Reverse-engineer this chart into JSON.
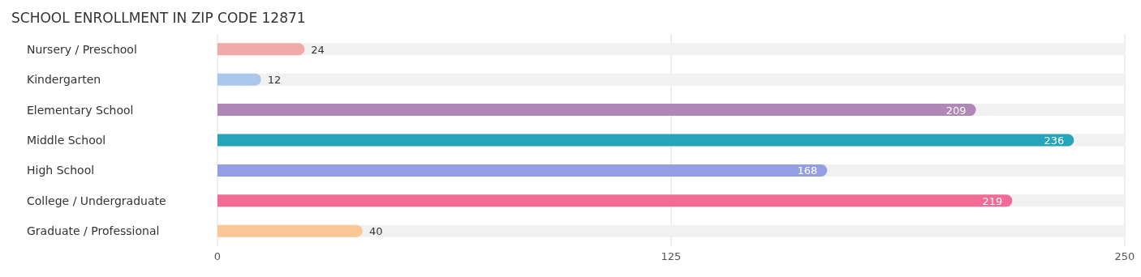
{
  "chart_data": {
    "type": "bar",
    "orientation": "horizontal",
    "title": "SCHOOL ENROLLMENT IN ZIP CODE 12871",
    "categories": [
      "Nursery / Preschool",
      "Kindergarten",
      "Elementary School",
      "Middle School",
      "High School",
      "College / Undergraduate",
      "Graduate / Professional"
    ],
    "values": [
      24,
      12,
      209,
      236,
      168,
      219,
      40
    ],
    "colors": [
      "#f0aaa8",
      "#a9c8ec",
      "#b088b8",
      "#27a5b8",
      "#939fe2",
      "#f26b96",
      "#fbc796"
    ],
    "xlim": [
      0,
      250
    ],
    "xticks": [
      0,
      125,
      250
    ],
    "grid": "x",
    "data_labels": true
  }
}
